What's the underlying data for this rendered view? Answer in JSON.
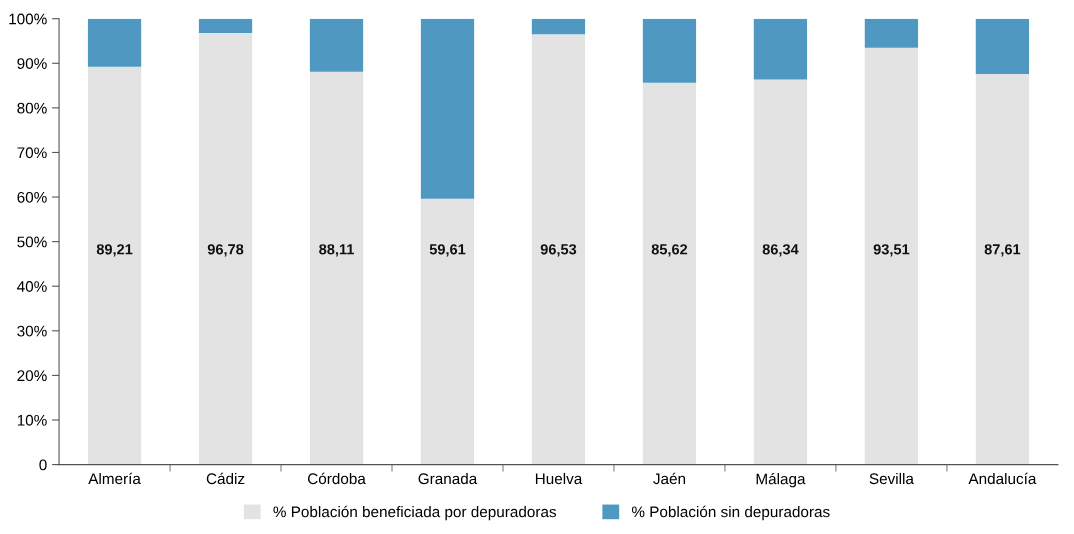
{
  "chart_data": {
    "type": "bar",
    "stacked": true,
    "categories": [
      "Almería",
      "Cádiz",
      "Córdoba",
      "Granada",
      "Huelva",
      "Jaén",
      "Málaga",
      "Sevilla",
      "Andalucía"
    ],
    "series": [
      {
        "name": "% Población beneficiada por depuradoras",
        "color": "#e3e3e3",
        "values": [
          89.21,
          96.78,
          88.11,
          59.61,
          96.53,
          85.62,
          86.34,
          93.51,
          87.61
        ],
        "value_labels": [
          "89,21",
          "96,78",
          "88,11",
          "59,61",
          "96,53",
          "85,62",
          "86,34",
          "93,51",
          "87,61"
        ]
      },
      {
        "name": "% Población sin depuradoras",
        "color": "#4f98c2",
        "values": [
          10.79,
          3.22,
          11.89,
          40.39,
          3.47,
          14.38,
          13.66,
          6.49,
          12.39
        ]
      }
    ],
    "ylim": [
      0,
      100
    ],
    "yticks": [
      0,
      {
        "value": 10,
        "label": "10%"
      },
      {
        "value": 20,
        "label": "20%"
      },
      {
        "value": 30,
        "label": "30%"
      },
      {
        "value": 40,
        "label": "40%"
      },
      {
        "value": 50,
        "label": "50%"
      },
      {
        "value": 60,
        "label": "60%"
      },
      {
        "value": 70,
        "label": "70%"
      },
      {
        "value": 80,
        "label": "80%"
      },
      {
        "value": 90,
        "label": "90%"
      },
      {
        "value": 100,
        "label": "100%"
      }
    ],
    "grid": false,
    "legend": "bottom"
  }
}
